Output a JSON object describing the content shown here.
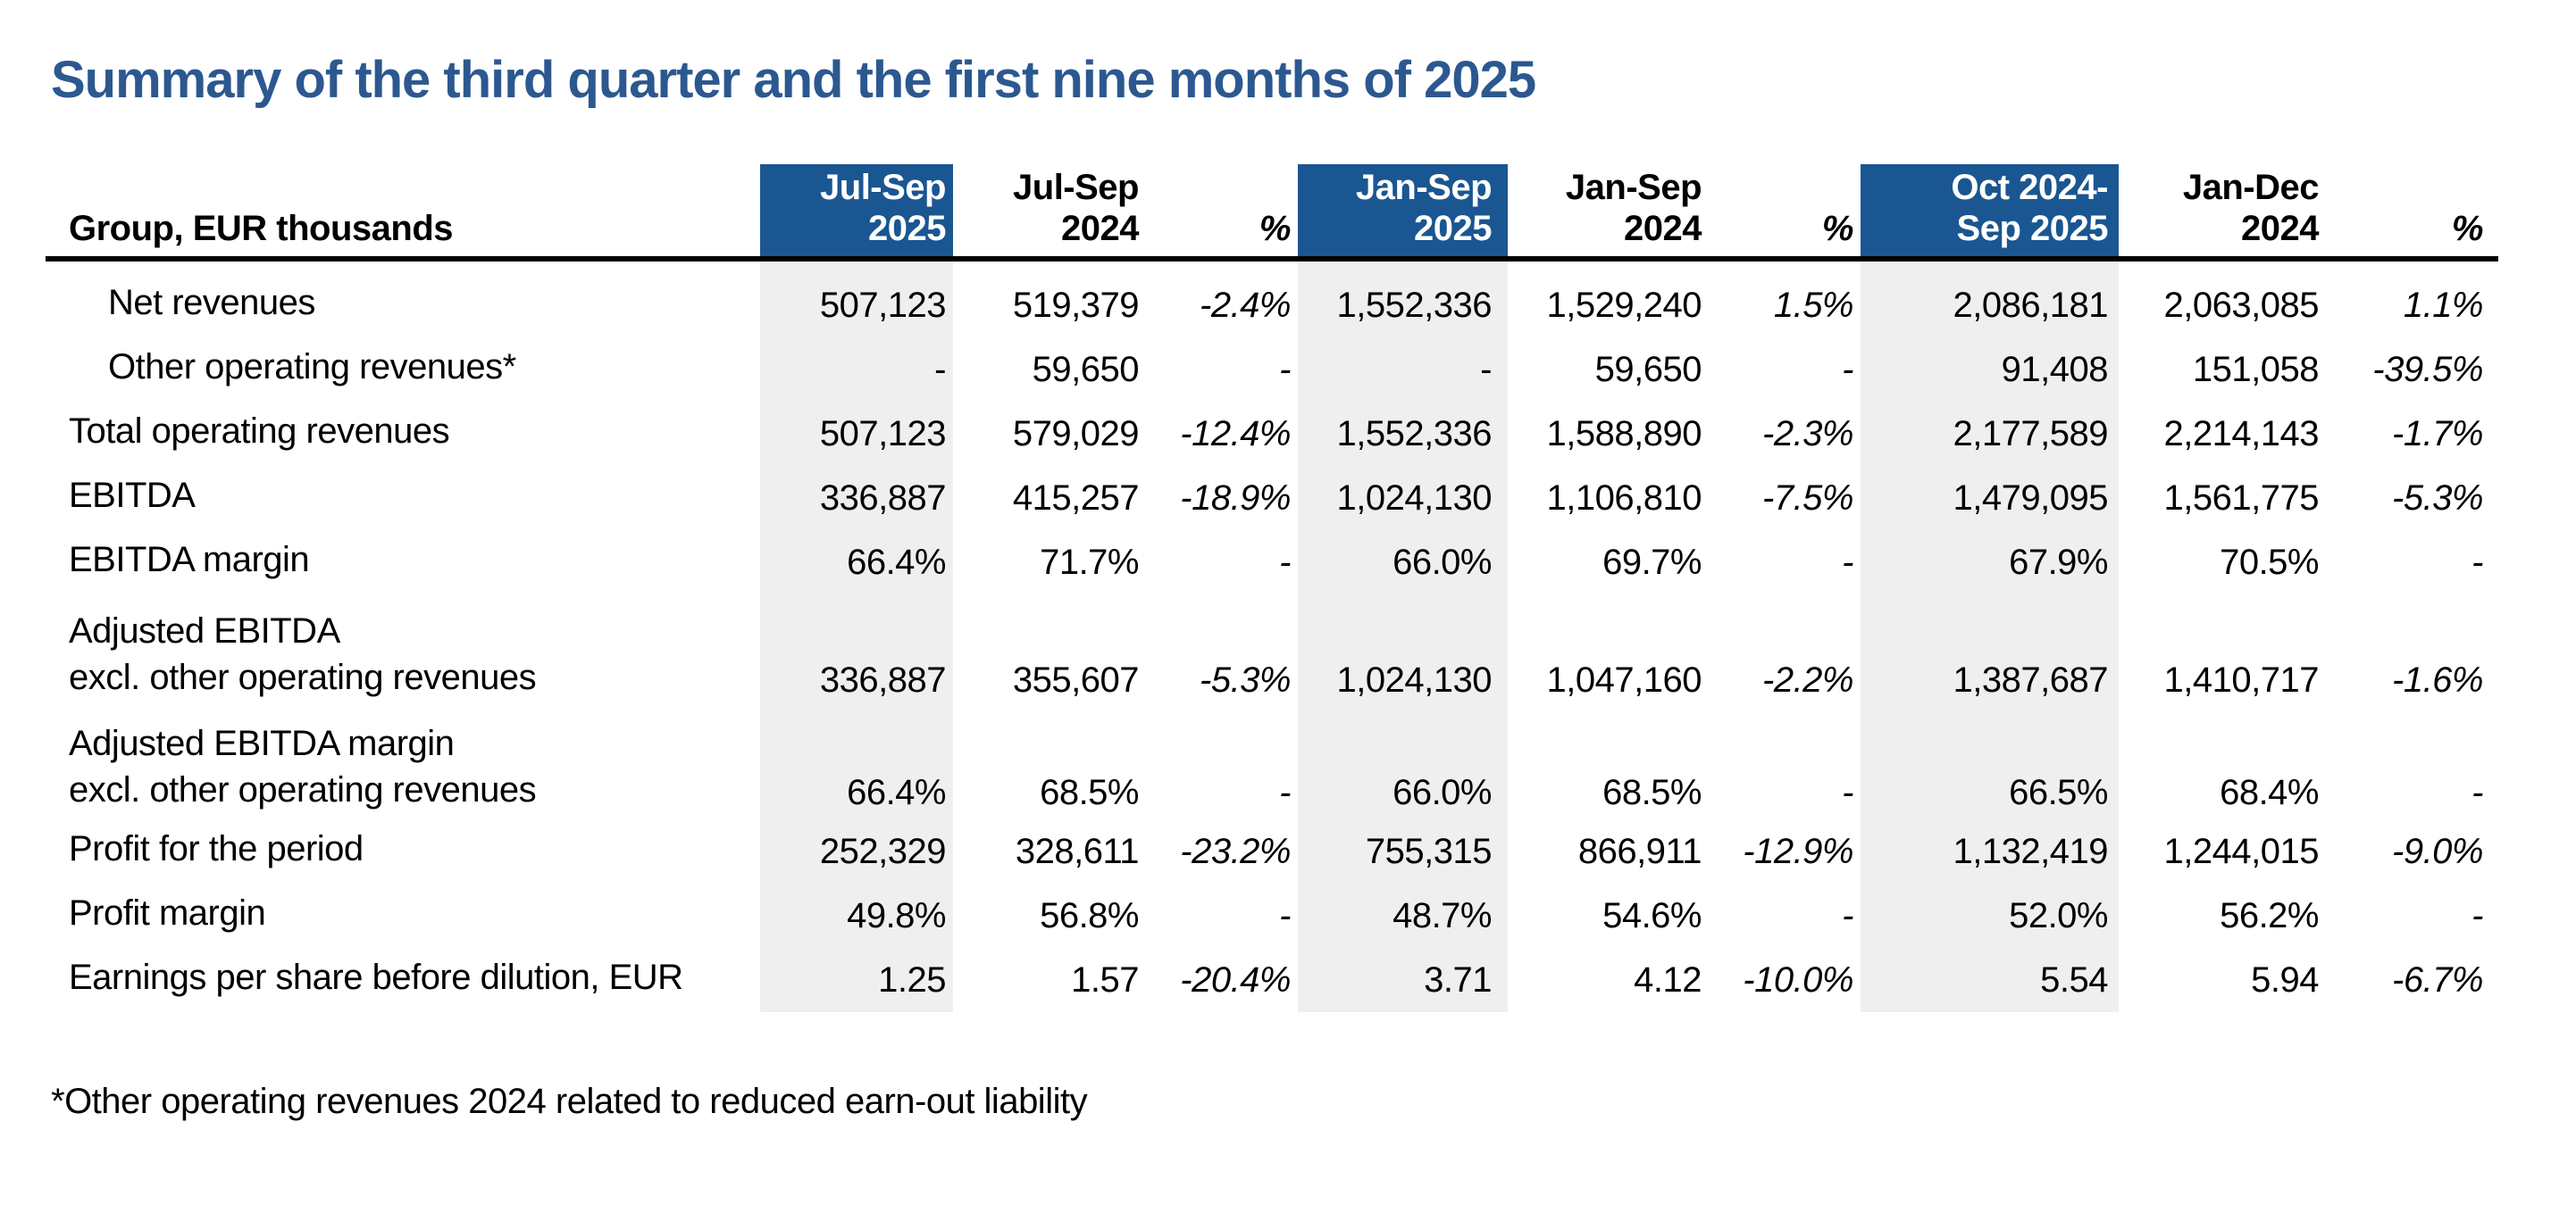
{
  "page": {
    "title": "Summary of the third quarter and the first nine months of 2025",
    "footnote": "*Other operating revenues 2024 related to reduced earn-out liability"
  },
  "colors": {
    "title_blue": "#2C5890",
    "header_blue": "#1A5691",
    "band_gray": "#EFEFEF",
    "rule_black": "#000000",
    "header_text_on_blue": "#FFFFFF"
  },
  "table": {
    "row_header_label": "Group, EUR thousands",
    "columns": [
      {
        "id": "jul_sep_2025",
        "line1": "Jul-Sep",
        "line2": "2025",
        "highlight": true,
        "italic": false
      },
      {
        "id": "jul_sep_2024",
        "line1": "Jul-Sep",
        "line2": "2024",
        "highlight": false,
        "italic": false
      },
      {
        "id": "pct_q3",
        "line1": "",
        "line2": "%",
        "highlight": false,
        "italic": true
      },
      {
        "id": "jan_sep_2025",
        "line1": "Jan-Sep",
        "line2": "2025",
        "highlight": true,
        "italic": false
      },
      {
        "id": "jan_sep_2024",
        "line1": "Jan-Sep",
        "line2": "2024",
        "highlight": false,
        "italic": false
      },
      {
        "id": "pct_9m",
        "line1": "",
        "line2": "%",
        "highlight": false,
        "italic": true
      },
      {
        "id": "oct24_sep25",
        "line1": "Oct 2024-",
        "line2": "Sep 2025",
        "highlight": true,
        "italic": false
      },
      {
        "id": "jan_dec_2024",
        "line1": "Jan-Dec",
        "line2": "2024",
        "highlight": false,
        "italic": false
      },
      {
        "id": "pct_ltm",
        "line1": "",
        "line2": "%",
        "highlight": false,
        "italic": true
      }
    ],
    "rows": [
      {
        "label": "Net revenues",
        "label2": "",
        "indent": true,
        "values": [
          "507,123",
          "519,379",
          "-2.4%",
          "1,552,336",
          "1,529,240",
          "1.5%",
          "2,086,181",
          "2,063,085",
          "1.1%"
        ]
      },
      {
        "label": "Other operating revenues*",
        "label2": "",
        "indent": true,
        "values": [
          "-",
          "59,650",
          "-",
          "-",
          "59,650",
          "-",
          "91,408",
          "151,058",
          "-39.5%"
        ]
      },
      {
        "label": "Total operating revenues",
        "label2": "",
        "indent": false,
        "values": [
          "507,123",
          "579,029",
          "-12.4%",
          "1,552,336",
          "1,588,890",
          "-2.3%",
          "2,177,589",
          "2,214,143",
          "-1.7%"
        ]
      },
      {
        "label": "EBITDA",
        "label2": "",
        "indent": false,
        "values": [
          "336,887",
          "415,257",
          "-18.9%",
          "1,024,130",
          "1,106,810",
          "-7.5%",
          "1,479,095",
          "1,561,775",
          "-5.3%"
        ]
      },
      {
        "label": "EBITDA margin",
        "label2": "",
        "indent": false,
        "values": [
          "66.4%",
          "71.7%",
          "-",
          "66.0%",
          "69.7%",
          "-",
          "67.9%",
          "70.5%",
          "-"
        ]
      },
      {
        "label": "Adjusted EBITDA",
        "label2": "excl. other operating revenues",
        "indent": false,
        "values": [
          "336,887",
          "355,607",
          "-5.3%",
          "1,024,130",
          "1,047,160",
          "-2.2%",
          "1,387,687",
          "1,410,717",
          "-1.6%"
        ]
      },
      {
        "label": "Adjusted EBITDA margin",
        "label2": "excl. other operating revenues",
        "indent": false,
        "values": [
          "66.4%",
          "68.5%",
          "-",
          "66.0%",
          "68.5%",
          "-",
          "66.5%",
          "68.4%",
          "-"
        ]
      },
      {
        "label": "Profit for the period",
        "label2": "",
        "indent": false,
        "values": [
          "252,329",
          "328,611",
          "-23.2%",
          "755,315",
          "866,911",
          "-12.9%",
          "1,132,419",
          "1,244,015",
          "-9.0%"
        ]
      },
      {
        "label": "Profit margin",
        "label2": "",
        "indent": false,
        "values": [
          "49.8%",
          "56.8%",
          "-",
          "48.7%",
          "54.6%",
          "-",
          "52.0%",
          "56.2%",
          "-"
        ]
      },
      {
        "label": "Earnings per share before dilution, EUR",
        "label2": "",
        "indent": false,
        "values": [
          "1.25",
          "1.57",
          "-20.4%",
          "3.71",
          "4.12",
          "-10.0%",
          "5.54",
          "5.94",
          "-6.7%"
        ]
      }
    ]
  }
}
